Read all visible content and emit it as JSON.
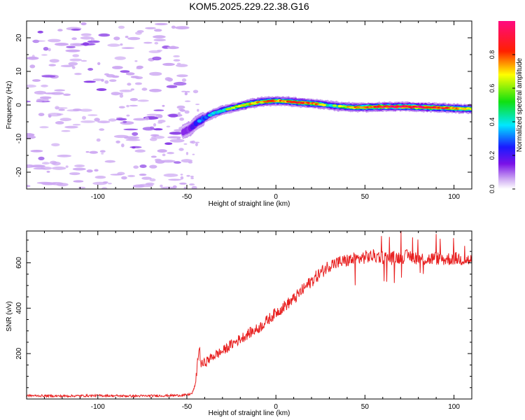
{
  "title": "KOM5.2025.229.22.38.G16",
  "colors": {
    "snr_line": "#e82020",
    "noise_blob": "#cda8f2",
    "noise_blob_dark": "#8a3ee6",
    "frame": "#000000"
  },
  "chart_data": [
    {
      "type": "heatmap",
      "name": "spectrogram",
      "xlabel": "Height of straight line (km)",
      "ylabel": "Frequency (Hz)",
      "xlim": [
        -140,
        110
      ],
      "ylim": [
        -25,
        25
      ],
      "xticks": [
        -100,
        -50,
        0,
        50,
        100
      ],
      "yticks": [
        -20,
        -10,
        0,
        10,
        20
      ],
      "colorbar": {
        "label": "Normalized spectral amplitude",
        "range": [
          0,
          1
        ],
        "ticks": [
          0.0,
          0.2,
          0.4,
          0.6,
          0.8
        ],
        "tick_labels": [
          "0.0",
          "0.2",
          "0.4",
          "0.6",
          "0.8"
        ],
        "colormap": "rainbow (white-violet-blue-cyan-green-yellow-red-magenta)"
      },
      "ridge": {
        "description": "Doppler frequency ridge (normalized amplitude)",
        "x": [
          -52,
          -48,
          -45,
          -42,
          -38,
          -34,
          -30,
          -25,
          -20,
          -15,
          -10,
          -5,
          0,
          5,
          10,
          15,
          20,
          25,
          30,
          35,
          40,
          45,
          50,
          55,
          60,
          65,
          70,
          75,
          80,
          85,
          90,
          95,
          100,
          105,
          110
        ],
        "y": [
          -8.0,
          -7.0,
          -5.5,
          -4.5,
          -3.2,
          -2.3,
          -1.6,
          -0.9,
          -0.3,
          0.3,
          0.8,
          1.1,
          1.2,
          1.1,
          0.9,
          0.7,
          0.5,
          0.2,
          -0.1,
          -0.4,
          -0.6,
          -0.7,
          -0.7,
          -0.6,
          -0.5,
          -0.5,
          -0.5,
          -0.5,
          -0.6,
          -0.7,
          -0.8,
          -0.9,
          -1.0,
          -1.1,
          -1.2
        ],
        "amplitude": [
          0.3,
          0.35,
          0.4,
          0.45,
          0.5,
          0.52,
          0.55,
          0.6,
          0.66,
          0.72,
          0.74,
          0.76,
          0.78,
          0.8,
          0.83,
          0.85,
          0.82,
          0.7,
          0.55,
          0.6,
          0.68,
          0.75,
          0.82,
          0.88,
          0.9,
          0.92,
          0.94,
          0.95,
          0.95,
          0.93,
          0.9,
          0.86,
          0.82,
          0.76,
          0.7
        ]
      },
      "noise_region": {
        "x_range": [
          -140,
          -50
        ],
        "y_range": [
          -25,
          25
        ],
        "amplitude_range": [
          0.0,
          0.15
        ]
      }
    },
    {
      "type": "line",
      "name": "snr",
      "xlabel": "Height of straight line (km)",
      "ylabel": "SNR (v/v)",
      "xlim": [
        -140,
        110
      ],
      "ylim": [
        0,
        740
      ],
      "xticks": [
        -100,
        -50,
        0,
        50,
        100
      ],
      "yticks": [
        200,
        400,
        600
      ],
      "series": [
        {
          "name": "SNR",
          "x": [
            -140,
            -130,
            -120,
            -110,
            -100,
            -90,
            -80,
            -70,
            -60,
            -50,
            -47,
            -45,
            -44,
            -43,
            -42,
            -40,
            -35,
            -30,
            -25,
            -20,
            -15,
            -10,
            -5,
            0,
            5,
            10,
            15,
            20,
            25,
            30,
            35,
            40,
            45,
            50,
            55,
            60,
            65,
            70,
            75,
            80,
            85,
            90,
            95,
            100,
            105,
            110
          ],
          "y": [
            15,
            14,
            13,
            14,
            15,
            14,
            13,
            14,
            15,
            17,
            25,
            70,
            170,
            225,
            150,
            160,
            190,
            210,
            240,
            265,
            290,
            310,
            345,
            380,
            410,
            440,
            480,
            520,
            555,
            590,
            600,
            610,
            615,
            625,
            630,
            625,
            620,
            625,
            630,
            620,
            615,
            620,
            615,
            620,
            615,
            610
          ],
          "noise_amplitude": 30
        }
      ]
    }
  ]
}
